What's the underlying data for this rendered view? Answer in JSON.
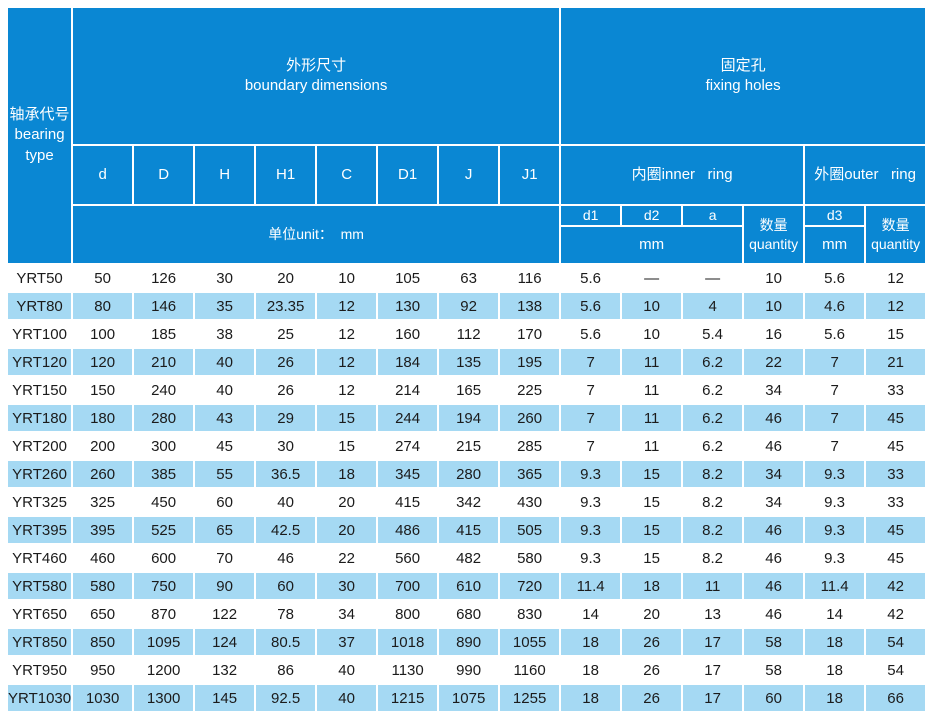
{
  "colors": {
    "header_bg": "#0a87d3",
    "row_alt_bg": "#a5d9f3",
    "header_text": "#ffffff",
    "body_text": "#1b1b1b"
  },
  "header": {
    "bearing_type": "轴承代号\nbearing\ntype",
    "boundary_dimensions": "外形尺寸\nboundary dimensions",
    "fixing_holes": "固定孔\nfixing holes",
    "dim_columns": [
      "d",
      "D",
      "H",
      "H1",
      "C",
      "D1",
      "J",
      "J1"
    ],
    "unit_label": "单位unit：  mm",
    "inner_ring": "内圈inner   ring",
    "outer_ring": "外圈outer   ring",
    "inner_cols": [
      "d1",
      "d2",
      "a"
    ],
    "inner_mm": "mm",
    "inner_qty": "数量\nquantity",
    "outer_d3": "d3",
    "outer_mm": "mm",
    "outer_qty": "数量\nquantity"
  },
  "rows": [
    [
      "YRT50",
      "50",
      "126",
      "30",
      "20",
      "10",
      "105",
      "63",
      "116",
      "5.6",
      "—",
      "—",
      "10",
      "5.6",
      "12"
    ],
    [
      "YRT80",
      "80",
      "146",
      "35",
      "23.35",
      "12",
      "130",
      "92",
      "138",
      "5.6",
      "10",
      "4",
      "10",
      "4.6",
      "12"
    ],
    [
      "YRT100",
      "100",
      "185",
      "38",
      "25",
      "12",
      "160",
      "112",
      "170",
      "5.6",
      "10",
      "5.4",
      "16",
      "5.6",
      "15"
    ],
    [
      "YRT120",
      "120",
      "210",
      "40",
      "26",
      "12",
      "184",
      "135",
      "195",
      "7",
      "11",
      "6.2",
      "22",
      "7",
      "21"
    ],
    [
      "YRT150",
      "150",
      "240",
      "40",
      "26",
      "12",
      "214",
      "165",
      "225",
      "7",
      "11",
      "6.2",
      "34",
      "7",
      "33"
    ],
    [
      "YRT180",
      "180",
      "280",
      "43",
      "29",
      "15",
      "244",
      "194",
      "260",
      "7",
      "11",
      "6.2",
      "46",
      "7",
      "45"
    ],
    [
      "YRT200",
      "200",
      "300",
      "45",
      "30",
      "15",
      "274",
      "215",
      "285",
      "7",
      "11",
      "6.2",
      "46",
      "7",
      "45"
    ],
    [
      "YRT260",
      "260",
      "385",
      "55",
      "36.5",
      "18",
      "345",
      "280",
      "365",
      "9.3",
      "15",
      "8.2",
      "34",
      "9.3",
      "33"
    ],
    [
      "YRT325",
      "325",
      "450",
      "60",
      "40",
      "20",
      "415",
      "342",
      "430",
      "9.3",
      "15",
      "8.2",
      "34",
      "9.3",
      "33"
    ],
    [
      "YRT395",
      "395",
      "525",
      "65",
      "42.5",
      "20",
      "486",
      "415",
      "505",
      "9.3",
      "15",
      "8.2",
      "46",
      "9.3",
      "45"
    ],
    [
      "YRT460",
      "460",
      "600",
      "70",
      "46",
      "22",
      "560",
      "482",
      "580",
      "9.3",
      "15",
      "8.2",
      "46",
      "9.3",
      "45"
    ],
    [
      "YRT580",
      "580",
      "750",
      "90",
      "60",
      "30",
      "700",
      "610",
      "720",
      "11.4",
      "18",
      "11",
      "46",
      "11.4",
      "42"
    ],
    [
      "YRT650",
      "650",
      "870",
      "122",
      "78",
      "34",
      "800",
      "680",
      "830",
      "14",
      "20",
      "13",
      "46",
      "14",
      "42"
    ],
    [
      "YRT850",
      "850",
      "1095",
      "124",
      "80.5",
      "37",
      "1018",
      "890",
      "1055",
      "18",
      "26",
      "17",
      "58",
      "18",
      "54"
    ],
    [
      "YRT950",
      "950",
      "1200",
      "132",
      "86",
      "40",
      "1130",
      "990",
      "1160",
      "18",
      "26",
      "17",
      "58",
      "18",
      "54"
    ],
    [
      "YRT1030",
      "1030",
      "1300",
      "145",
      "92.5",
      "40",
      "1215",
      "1075",
      "1255",
      "18",
      "26",
      "17",
      "60",
      "18",
      "66"
    ]
  ]
}
